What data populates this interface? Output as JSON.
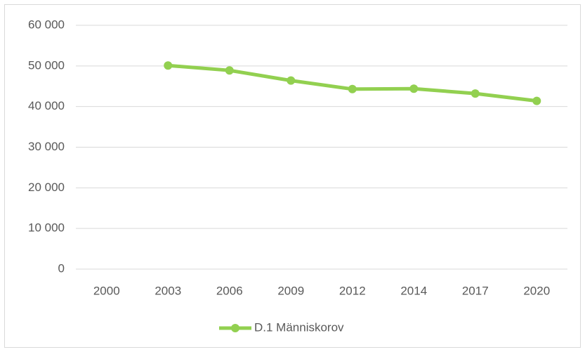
{
  "chart_data": {
    "type": "line",
    "categories": [
      "2000",
      "2003",
      "2006",
      "2009",
      "2012",
      "2014",
      "2017",
      "2020"
    ],
    "series": [
      {
        "name": "D.1 Människorov",
        "color": "#92d050",
        "values": [
          null,
          50100,
          48900,
          46400,
          44300,
          44400,
          43200,
          41400
        ]
      }
    ],
    "ylim": [
      0,
      60000
    ],
    "yticks": [
      0,
      {
        "value": 10000,
        "label": "10 000"
      },
      {
        "value": 20000,
        "label": "20 000"
      },
      {
        "value": 30000,
        "label": "30 000"
      },
      {
        "value": 40000,
        "label": "40 000"
      },
      {
        "value": 50000,
        "label": "50 000"
      },
      {
        "value": 60000,
        "label": "60 000"
      }
    ],
    "grid": true,
    "legend": "bottom"
  }
}
